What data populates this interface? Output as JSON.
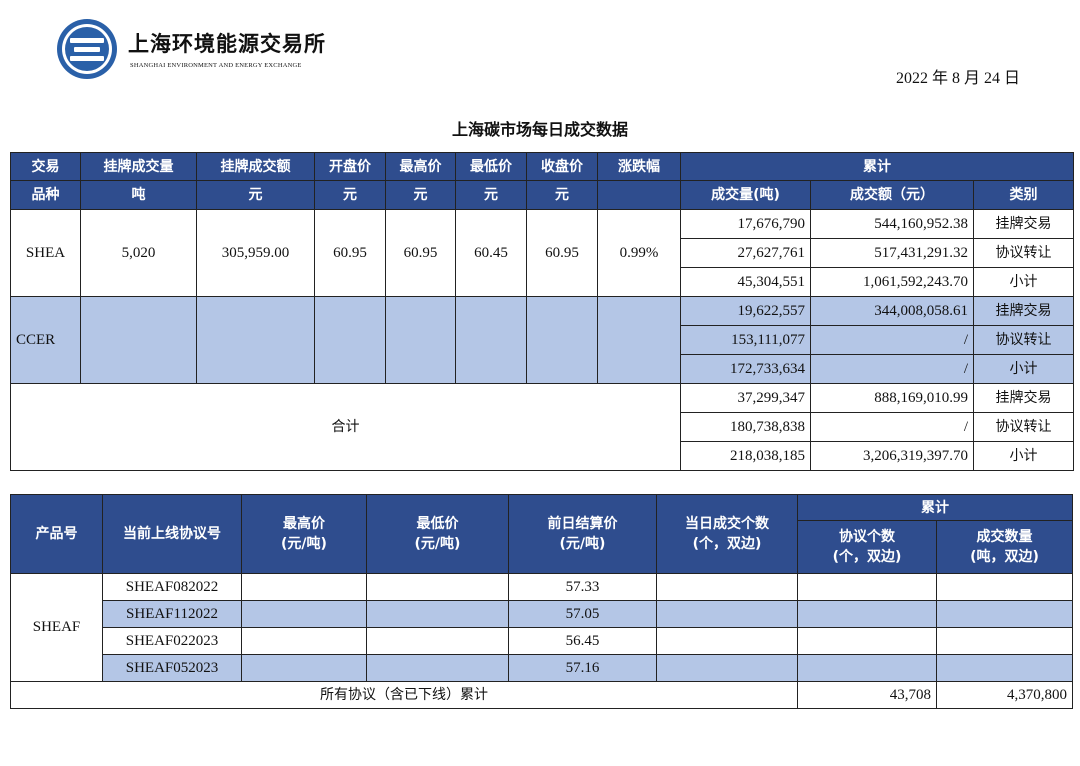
{
  "header": {
    "org_cn": "上海环境能源交易所",
    "org_en": "SHANGHAI ENVIRONMENT AND ENERGY EXCHANGE",
    "date": "2022 年 8 月 24 日",
    "title": "上海碳市场每日成交数据"
  },
  "table1": {
    "headers": {
      "variety_1": "交易",
      "variety_2": "品种",
      "listed_volume": "挂牌成交量",
      "listed_amount": "挂牌成交额",
      "open": "开盘价",
      "high": "最高价",
      "low": "最低价",
      "close": "收盘价",
      "change": "涨跌幅",
      "cumulative": "累计",
      "unit_ton": "吨",
      "unit_yuan": "元",
      "cum_volume": "成交量(吨)",
      "cum_amount": "成交额（元）",
      "cum_type": "类别"
    },
    "shea": {
      "name": "SHEA",
      "listed_volume": "5,020",
      "listed_amount": "305,959.00",
      "open": "60.95",
      "high": "60.95",
      "low": "60.45",
      "close": "60.95",
      "change": "0.99%",
      "rows": [
        {
          "volume": "17,676,790",
          "amount": "544,160,952.38",
          "type": "挂牌交易"
        },
        {
          "volume": "27,627,761",
          "amount": "517,431,291.32",
          "type": "协议转让"
        },
        {
          "volume": "45,304,551",
          "amount": "1,061,592,243.70",
          "type": "小计"
        }
      ]
    },
    "ccer": {
      "name": "CCER",
      "rows": [
        {
          "volume": "19,622,557",
          "amount": "344,008,058.61",
          "type": "挂牌交易"
        },
        {
          "volume": "153,111,077",
          "amount": "/",
          "type": "协议转让"
        },
        {
          "volume": "172,733,634",
          "amount": "/",
          "type": "小计"
        }
      ]
    },
    "total": {
      "name": "合计",
      "rows": [
        {
          "volume": "37,299,347",
          "amount": "888,169,010.99",
          "type": "挂牌交易"
        },
        {
          "volume": "180,738,838",
          "amount": "/",
          "type": "协议转让"
        },
        {
          "volume": "218,038,185",
          "amount": "3,206,319,397.70",
          "type": "小计"
        }
      ]
    }
  },
  "table2": {
    "headers": {
      "product": "产品号",
      "contract": "当前上线协议号",
      "high_1": "最高价",
      "high_2": "(元/吨)",
      "low_1": "最低价",
      "low_2": "(元/吨)",
      "settle_1": "前日结算价",
      "settle_2": "(元/吨)",
      "count_1": "当日成交个数",
      "count_2": "(个，双边)",
      "cumulative": "累计",
      "agree_1": "协议个数",
      "agree_2": "(个，双边)",
      "qty_1": "成交数量",
      "qty_2": "(吨，双边)"
    },
    "product": "SHEAF",
    "rows": [
      {
        "contract": "SHEAF082022",
        "high": "",
        "low": "",
        "settle": "57.33",
        "count": "",
        "agree": "",
        "qty": ""
      },
      {
        "contract": "SHEAF112022",
        "high": "",
        "low": "",
        "settle": "57.05",
        "count": "",
        "agree": "",
        "qty": ""
      },
      {
        "contract": "SHEAF022023",
        "high": "",
        "low": "",
        "settle": "56.45",
        "count": "",
        "agree": "",
        "qty": ""
      },
      {
        "contract": "SHEAF052023",
        "high": "",
        "low": "",
        "settle": "57.16",
        "count": "",
        "agree": "",
        "qty": ""
      }
    ],
    "total": {
      "label": "所有协议（含已下线）累计",
      "agree": "43,708",
      "qty": "4,370,800"
    }
  }
}
